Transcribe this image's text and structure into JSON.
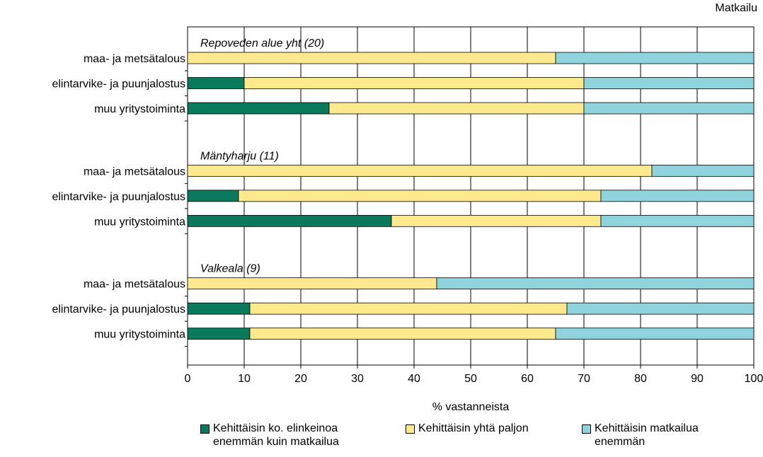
{
  "chart_data": {
    "type": "stacked_barh",
    "title": "Matkailu",
    "xlabel": "% vastanneista",
    "group_titles": [
      "Repoveden alue yht (20)",
      "Mäntyharju (11)",
      "Valkeala (9)"
    ],
    "categories": [
      "maa- ja metsätalous",
      "elintarvike- ja puunjalostus",
      "muu yritystoiminta",
      "maa- ja metsätalous",
      "elintarvike- ja puunjalostus",
      "muu yritystoiminta",
      "maa- ja metsätalous",
      "elintarvike- ja puunjalostus",
      "muu yritystoiminta"
    ],
    "series": [
      {
        "name": "Kehittäisin ko. elinkeinoa enemmän kuin matkailua",
        "color": "#0b7a5c",
        "values": [
          0,
          10,
          25,
          0,
          9,
          36,
          0,
          11,
          11
        ]
      },
      {
        "name": "Kehittäisin yhtä paljon",
        "color": "#ffe98f",
        "values": [
          65,
          60,
          45,
          82,
          64,
          37,
          44,
          56,
          54
        ]
      },
      {
        "name": "Kehittäisin matkailua enemmän",
        "color": "#8fd4dc",
        "values": [
          35,
          30,
          30,
          18,
          27,
          27,
          56,
          33,
          35
        ]
      }
    ],
    "xlim": [
      0,
      100
    ],
    "xticks": [
      0,
      10,
      20,
      30,
      40,
      50,
      60,
      70,
      80,
      90,
      100
    ],
    "grid": true
  }
}
